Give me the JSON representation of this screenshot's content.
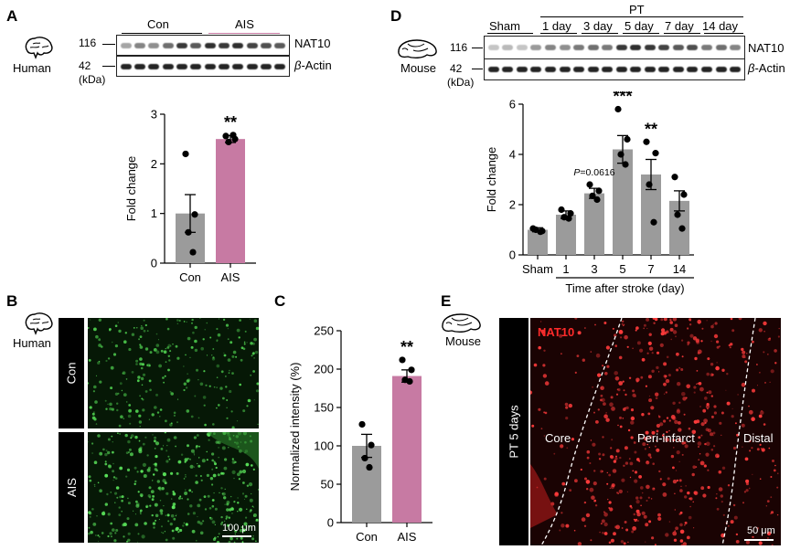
{
  "panels": {
    "A": {
      "label": "A",
      "species": "Human",
      "blot": {
        "groups": [
          "Con",
          "AIS"
        ],
        "rows": [
          {
            "marker": "116",
            "protein": "NAT10",
            "intensities": [
              0.35,
              0.5,
              0.45,
              0.6,
              0.85,
              0.7,
              0.9,
              0.85,
              0.9,
              0.8,
              0.75,
              0.7
            ]
          },
          {
            "marker": "42",
            "protein_prefix": "β",
            "protein": "-Actin",
            "intensities": [
              0.95,
              0.95,
              0.95,
              0.95,
              0.95,
              0.95,
              0.95,
              0.95,
              0.95,
              0.95,
              0.95,
              0.95
            ]
          }
        ],
        "unit": "(kDa)"
      }
    },
    "B": {
      "label": "B",
      "species": "Human",
      "rows": [
        "Con",
        "AIS"
      ],
      "scalebar": "100 μm"
    },
    "C": {
      "label": "C"
    },
    "D": {
      "label": "D",
      "species": "Mouse",
      "blot": {
        "pt_label": "PT",
        "groups": [
          "Sham",
          "1 day",
          "3 day",
          "5 day",
          "7 day",
          "14 day"
        ],
        "rows": [
          {
            "marker": "116",
            "protein": "NAT10",
            "intensities": [
              0.2,
              0.25,
              0.2,
              0.4,
              0.5,
              0.45,
              0.55,
              0.6,
              0.55,
              0.85,
              0.9,
              0.85,
              0.8,
              0.7,
              0.75,
              0.55,
              0.6,
              0.5
            ]
          },
          {
            "marker": "42",
            "protein_prefix": "β",
            "protein": "-Actin",
            "intensities": [
              0.95,
              0.95,
              0.95,
              0.95,
              0.95,
              0.95,
              0.95,
              0.95,
              0.95,
              0.95,
              0.95,
              0.95,
              0.95,
              0.95,
              0.95,
              0.95,
              0.95,
              0.95
            ]
          }
        ],
        "unit": "(kDa)"
      }
    },
    "E": {
      "label": "E",
      "species": "Mouse",
      "side_label": "PT 5 days",
      "stain": "NAT10",
      "regions": [
        "Core",
        "Peri-infarct",
        "Distal"
      ],
      "scalebar": "50 μm"
    }
  },
  "chart_data": [
    {
      "panel": "A",
      "type": "bar",
      "categories": [
        "Con",
        "AIS"
      ],
      "values": [
        1.0,
        2.5
      ],
      "errors": [
        0.38,
        0.07
      ],
      "points": [
        [
          2.2,
          0.98,
          0.62,
          0.22
        ],
        [
          2.56,
          2.5,
          2.44,
          2.58
        ]
      ],
      "colors": [
        "#9b9b9b",
        "#c77aa3"
      ],
      "ylabel": "Fold change",
      "ylim": [
        0,
        3
      ],
      "yticks": [
        0,
        1,
        2,
        3
      ],
      "significance": [
        "",
        "**"
      ]
    },
    {
      "panel": "C",
      "type": "bar",
      "categories": [
        "Con",
        "AIS"
      ],
      "values": [
        100,
        191
      ],
      "errors": [
        15,
        8
      ],
      "points": [
        [
          128,
          101,
          84,
          72
        ],
        [
          212,
          199,
          186,
          184
        ]
      ],
      "colors": [
        "#9b9b9b",
        "#c77aa3"
      ],
      "ylabel": "Normalized intensity (%)",
      "ylim": [
        0,
        250
      ],
      "yticks": [
        0,
        50,
        100,
        150,
        200,
        250
      ],
      "significance": [
        "",
        "**"
      ]
    },
    {
      "panel": "D",
      "type": "bar",
      "categories": [
        "Sham",
        "1",
        "3",
        "5",
        "7",
        "14"
      ],
      "values": [
        1.0,
        1.6,
        2.45,
        4.2,
        3.2,
        2.15
      ],
      "errors": [
        0.08,
        0.15,
        0.2,
        0.55,
        0.6,
        0.4
      ],
      "points": [
        [
          1.05,
          0.95,
          1.0,
          0.92
        ],
        [
          1.8,
          1.65,
          1.5,
          1.45
        ],
        [
          2.8,
          2.55,
          2.35,
          2.2
        ],
        [
          5.8,
          4.6,
          4.0,
          3.6
        ],
        [
          4.5,
          4.05,
          2.8,
          1.3
        ],
        [
          3.1,
          2.4,
          1.6,
          1.05
        ]
      ],
      "colors": [
        "#9b9b9b",
        "#9b9b9b",
        "#9b9b9b",
        "#9b9b9b",
        "#9b9b9b",
        "#9b9b9b"
      ],
      "ylabel": "Fold change",
      "xlabel": "Time after stroke (day)",
      "ylim": [
        0,
        6
      ],
      "yticks": [
        0,
        2,
        4,
        6
      ],
      "significance": [
        "",
        "",
        "",
        "***",
        "**",
        ""
      ],
      "annotation": {
        "category": "3",
        "prefix": "P",
        "text": "=0.0616"
      }
    }
  ]
}
